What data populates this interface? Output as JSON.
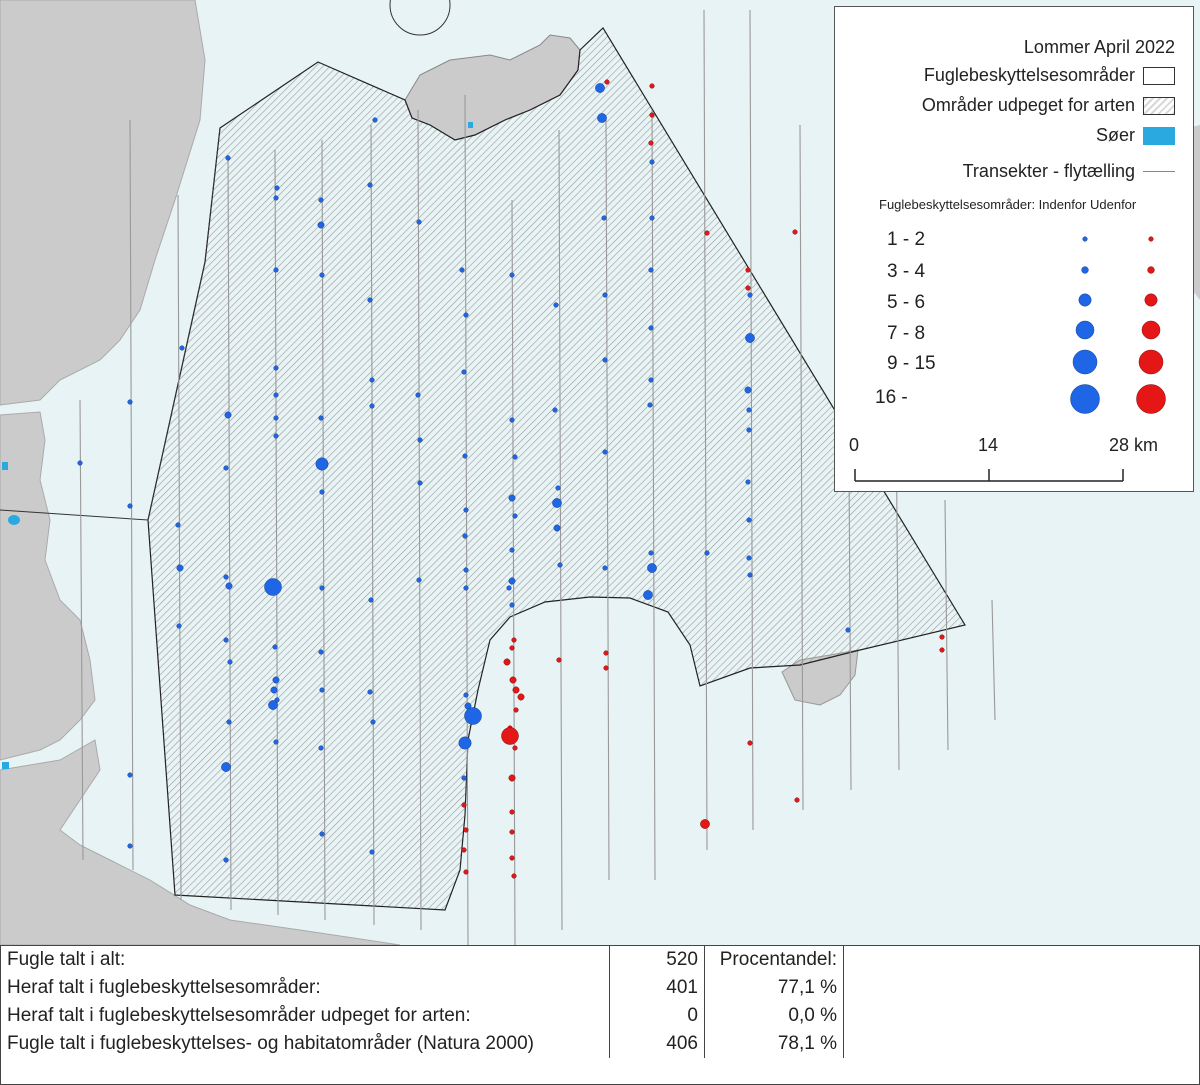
{
  "legend": {
    "title": "Lommer April 2022",
    "items": [
      {
        "label": "Fuglebeskyttelsesområder",
        "swatch": "white"
      },
      {
        "label": "Områder udpeget for arten",
        "swatch": "hatch"
      },
      {
        "label": "Søer",
        "swatch": "lake"
      },
      {
        "label": "Transekter - flytælling",
        "swatch": "line"
      }
    ],
    "size_header": "Fuglebeskyttelsesområder:  Indenfor  Udenfor",
    "size_classes": [
      {
        "label": "1   -    2"
      },
      {
        "label": "3   -    4"
      },
      {
        "label": "5   -    6"
      },
      {
        "label": "7   -    8"
      },
      {
        "label": "9   -   15"
      },
      {
        "label": "16  -"
      }
    ],
    "scale_labels": [
      "0",
      "14",
      "28 km"
    ]
  },
  "colors": {
    "sea": "#e8f3f5",
    "land": "#cbcbcb",
    "inside": "#1f66e6",
    "outside": "#e51616",
    "lake": "#2aa8e0"
  },
  "stats": {
    "rows": [
      {
        "label": "Fugle talt i alt:",
        "count": "520",
        "pct": "Procentandel:"
      },
      {
        "label": "Heraf talt i fuglebeskyttelsesområder:",
        "count": "401",
        "pct": "77,1 %"
      },
      {
        "label": "Heraf talt i fuglebeskyttelsesområder udpeget for arten:",
        "count": "0",
        "pct": "0,0 %"
      },
      {
        "label": "Fugle talt i fuglebeskyttelses- og habitatområder (Natura 2000)",
        "count": "406",
        "pct": "78,1 %"
      }
    ]
  }
}
